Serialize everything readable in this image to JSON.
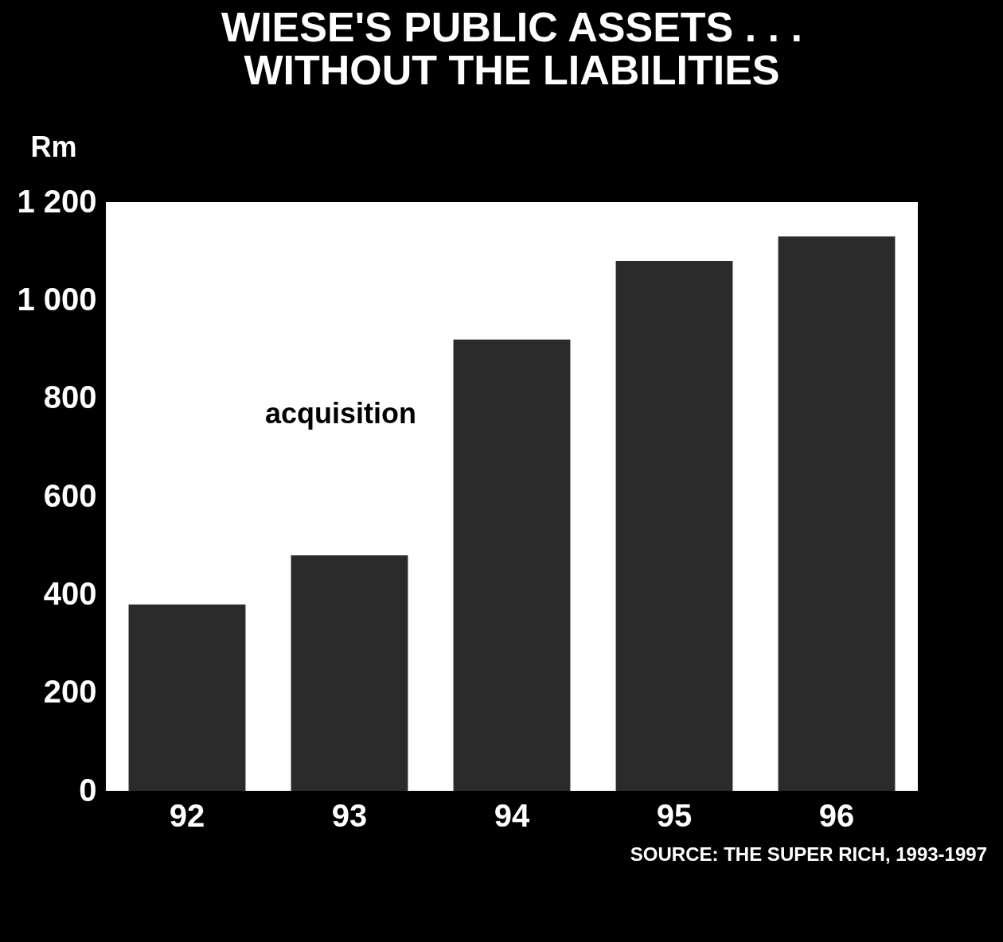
{
  "chart_data": {
    "type": "bar",
    "title": [
      "WIESE'S PUBLIC ASSETS . . .",
      "WITHOUT THE LIABILITIES"
    ],
    "ylabel": "Rm",
    "categories": [
      "92",
      "93",
      "94",
      "95",
      "96"
    ],
    "values": [
      380,
      480,
      920,
      1080,
      1130
    ],
    "color": "#2b2b2b",
    "ylim": [
      0,
      1200
    ],
    "yticks": [
      0,
      200,
      400,
      600,
      800,
      {
        "value": 1000,
        "label": "1 000"
      },
      {
        "value": 1200,
        "label": "1 200"
      }
    ],
    "grid": false,
    "annotations": [
      "acquisition",
      "SOURCE: THE SUPER RICH, 1993-1997"
    ]
  }
}
